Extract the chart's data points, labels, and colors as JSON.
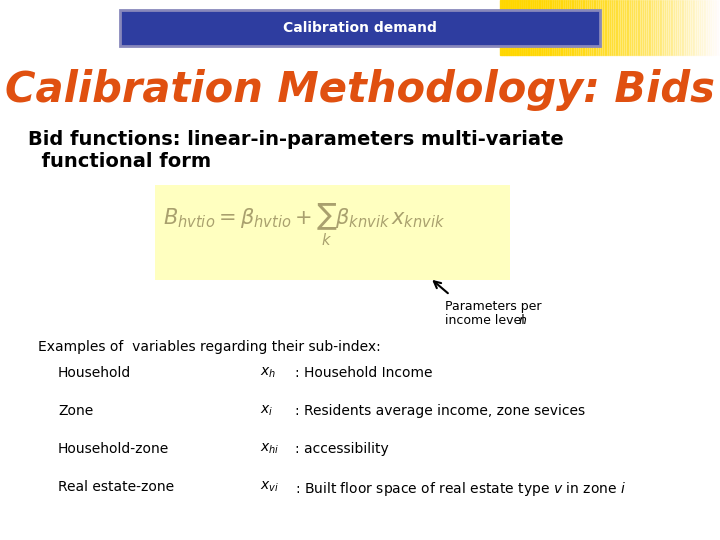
{
  "title_bar_text": "Calibration demand",
  "title_bar_bg": "#2E3DA0",
  "title_bar_border": "#8888BB",
  "main_title": "Calibration Methodology: Bids",
  "main_title_color": "#E05010",
  "subtitle_line1": "Bid functions: linear-in-parameters multi-variate",
  "subtitle_line2": "  functional form",
  "subtitle_color": "#000000",
  "formula_box_color": "#FFFFC0",
  "annotation_text1": "Parameters per",
  "annotation_text2": "income level ",
  "annotation_italic": "n",
  "examples_header": "Examples of  variables regarding their sub-index:",
  "rows": [
    [
      "Household",
      "$x_{h}$",
      ": Household Income"
    ],
    [
      "Zone",
      "$x_{i}$",
      ": Residents average income, zone sevices"
    ],
    [
      "Household-zone",
      "$x_{hi}$",
      ": accessibility"
    ],
    [
      "Real estate-zone",
      "$x_{vi}$",
      ": Built floor space of real estate type $v$ in zone $i$"
    ]
  ],
  "background_color": "#FFFFFF"
}
